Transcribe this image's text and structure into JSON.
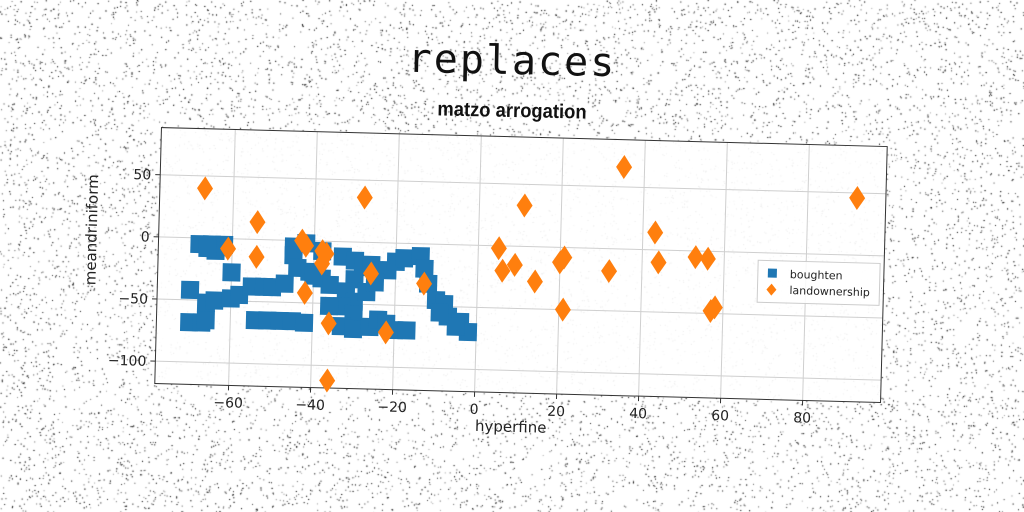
{
  "page_title": "replaces",
  "chart_data": {
    "type": "scatter",
    "title": "matzo arrogation",
    "xlabel": "hyperfine",
    "ylabel": "meandriniform",
    "xlim": [
      -78,
      99
    ],
    "ylim": [
      -118,
      88
    ],
    "xticks": [
      -60,
      -40,
      -20,
      0,
      20,
      40,
      60,
      80
    ],
    "yticks": [
      50,
      0,
      -50,
      -100
    ],
    "grid": true,
    "legend_position": "center-right",
    "series": [
      {
        "name": "boughten",
        "marker": "square",
        "color": "#1f77b4",
        "points": [
          [
            -68,
            -5
          ],
          [
            -65,
            -5
          ],
          [
            -62,
            -5
          ],
          [
            -63,
            -7
          ],
          [
            -64,
            -10
          ],
          [
            -66,
            -8
          ],
          [
            -70,
            -42
          ],
          [
            -70,
            -68
          ],
          [
            -67,
            -68
          ],
          [
            -66,
            -66
          ],
          [
            -66,
            -52
          ],
          [
            -64,
            -50
          ],
          [
            -60,
            -27
          ],
          [
            -60,
            -48
          ],
          [
            -58,
            -45
          ],
          [
            -55,
            -38
          ],
          [
            -52,
            -38
          ],
          [
            -50,
            -38
          ],
          [
            -47,
            -35
          ],
          [
            -54,
            -65
          ],
          [
            -51,
            -65
          ],
          [
            -48,
            -65
          ],
          [
            -45,
            -65
          ],
          [
            -42,
            -66
          ],
          [
            -45,
            -5
          ],
          [
            -45,
            -12
          ],
          [
            -44,
            -22
          ],
          [
            -41,
            -25
          ],
          [
            -38,
            -30
          ],
          [
            -36,
            -35
          ],
          [
            -40,
            -28
          ],
          [
            -38,
            -8
          ],
          [
            -42,
            -2
          ],
          [
            -33,
            -12
          ],
          [
            -30,
            -15
          ],
          [
            -28,
            -20
          ],
          [
            -30,
            -30
          ],
          [
            -32,
            -40
          ],
          [
            -30,
            -48
          ],
          [
            -33,
            -52
          ],
          [
            -36,
            -52
          ],
          [
            -30,
            -58
          ],
          [
            -33,
            -68
          ],
          [
            -30,
            -70
          ],
          [
            -26,
            -68
          ],
          [
            -24,
            -62
          ],
          [
            -22,
            -65
          ],
          [
            -20,
            -70
          ],
          [
            -17,
            -70
          ],
          [
            -26,
            -18
          ],
          [
            -22,
            -22
          ],
          [
            -20,
            -15
          ],
          [
            -18,
            -12
          ],
          [
            -14,
            -10
          ],
          [
            -13,
            -20
          ],
          [
            -12,
            -32
          ],
          [
            -10,
            -45
          ],
          [
            -8,
            -48
          ],
          [
            -7,
            -58
          ],
          [
            -4,
            -62
          ],
          [
            -2,
            -70
          ],
          [
            -5,
            -66
          ],
          [
            -9,
            -55
          ],
          [
            -27,
            -40
          ],
          [
            -25,
            -32
          ]
        ]
      },
      {
        "name": "landownership",
        "marker": "diamond",
        "color": "#ff7f0e",
        "points": [
          [
            -67,
            40
          ],
          [
            -61,
            -8
          ],
          [
            -54,
            14
          ],
          [
            -54,
            -14
          ],
          [
            -43,
            0
          ],
          [
            -42,
            -4
          ],
          [
            -38,
            -8
          ],
          [
            -37,
            -10
          ],
          [
            -38,
            -18
          ],
          [
            -42,
            -42
          ],
          [
            -26,
            -25
          ],
          [
            -36,
            -66
          ],
          [
            -36,
            -112
          ],
          [
            -22,
            -72
          ],
          [
            -13,
            -32
          ],
          [
            -28,
            36
          ],
          [
            5,
            -2
          ],
          [
            6,
            -20
          ],
          [
            9,
            -15
          ],
          [
            11,
            33
          ],
          [
            14,
            -28
          ],
          [
            20,
            -12
          ],
          [
            21,
            -8
          ],
          [
            21,
            -50
          ],
          [
            32,
            -18
          ],
          [
            35,
            66
          ],
          [
            43,
            14
          ],
          [
            44,
            -10
          ],
          [
            53,
            -5
          ],
          [
            56,
            -6
          ],
          [
            57,
            -48
          ],
          [
            58,
            -45
          ],
          [
            92,
            46
          ]
        ]
      }
    ]
  }
}
